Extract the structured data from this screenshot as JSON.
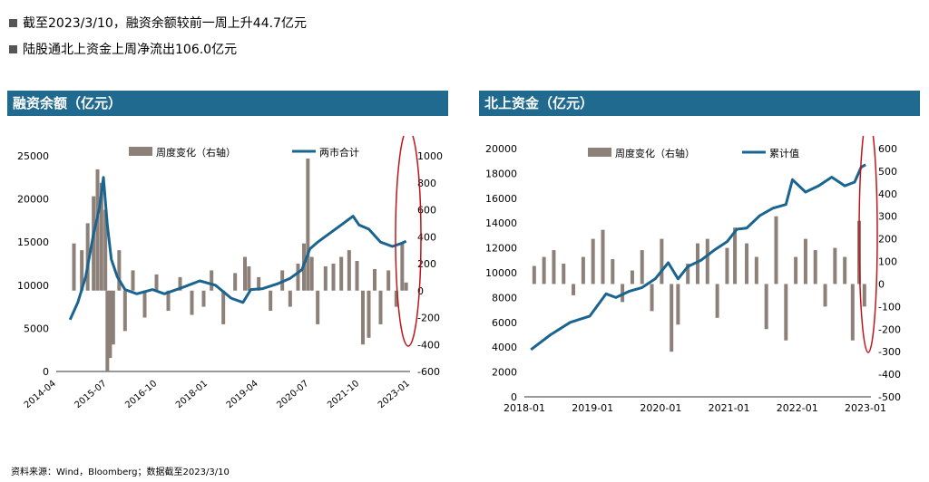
{
  "summary": {
    "line1": "截至2023/3/10，融资余额较前一周上升44.7亿元",
    "line2": "陆股通北上资金上周净流出106.0亿元"
  },
  "footer": "资料来源：Wind，Bloomberg；数据截至2023/3/10",
  "chart_data": [
    {
      "type": "bar+line",
      "title": "融资余额（亿元）",
      "legend": [
        "周度变化（右轴）",
        "两市合计"
      ],
      "left_axis": {
        "ylim": [
          0,
          25000
        ],
        "ticks": [
          0,
          5000,
          10000,
          15000,
          20000,
          25000
        ]
      },
      "right_axis": {
        "ylim": [
          -600,
          1000
        ],
        "ticks": [
          -600,
          -400,
          -200,
          0,
          200,
          400,
          600,
          800,
          1000
        ]
      },
      "x_range": [
        2014.25,
        2023.25
      ],
      "x_ticks": [
        "2014-04",
        "2015-07",
        "2016-10",
        "2018-01",
        "2019-04",
        "2020-07",
        "2021-10",
        "2023-01"
      ],
      "line": {
        "name": "两市合计",
        "x": [
          2014.6,
          2014.8,
          2015.0,
          2015.2,
          2015.35,
          2015.45,
          2015.55,
          2015.65,
          2015.8,
          2016.0,
          2016.3,
          2016.7,
          2017.0,
          2017.5,
          2017.9,
          2018.3,
          2018.7,
          2019.0,
          2019.2,
          2019.5,
          2019.9,
          2020.2,
          2020.5,
          2020.7,
          2020.9,
          2021.2,
          2021.5,
          2021.8,
          2021.95,
          2022.2,
          2022.5,
          2022.8,
          2023.0,
          2023.15
        ],
        "values": [
          6000,
          8000,
          11000,
          16000,
          19000,
          22500,
          17000,
          13000,
          11000,
          9500,
          9000,
          9500,
          9000,
          9800,
          10500,
          10000,
          8500,
          8000,
          9500,
          9600,
          10200,
          10800,
          11800,
          14200,
          15000,
          16000,
          17000,
          18000,
          17000,
          16500,
          15000,
          14500,
          14800,
          15100
        ]
      },
      "bars": {
        "name": "周度变化（右轴）",
        "x": [
          2014.7,
          2014.9,
          2015.05,
          2015.2,
          2015.3,
          2015.4,
          2015.5,
          2015.55,
          2015.62,
          2015.7,
          2015.85,
          2016.0,
          2016.2,
          2016.5,
          2016.8,
          2017.1,
          2017.4,
          2017.7,
          2018.0,
          2018.2,
          2018.5,
          2018.8,
          2019.05,
          2019.15,
          2019.4,
          2019.7,
          2020.0,
          2020.2,
          2020.4,
          2020.55,
          2020.65,
          2020.75,
          2020.9,
          2021.1,
          2021.3,
          2021.5,
          2021.7,
          2021.9,
          2022.05,
          2022.2,
          2022.35,
          2022.5,
          2022.7,
          2022.9,
          2023.05,
          2023.15
        ],
        "values": [
          350,
          300,
          500,
          700,
          900,
          800,
          600,
          -600,
          -500,
          -400,
          300,
          -300,
          150,
          -200,
          120,
          -150,
          100,
          -180,
          -120,
          150,
          -250,
          130,
          250,
          180,
          100,
          -150,
          150,
          -120,
          200,
          350,
          980,
          250,
          -250,
          180,
          200,
          250,
          300,
          220,
          -400,
          -350,
          160,
          -250,
          150,
          -120,
          350,
          60
        ]
      }
    },
    {
      "type": "bar+line",
      "title": "北上资金（亿元）",
      "legend": [
        "周度变化（右轴）",
        "累计值"
      ],
      "left_axis": {
        "ylim": [
          0,
          20000
        ],
        "ticks": [
          0,
          2000,
          4000,
          6000,
          8000,
          10000,
          12000,
          14000,
          16000,
          18000,
          20000
        ]
      },
      "right_axis": {
        "ylim": [
          -500,
          600
        ],
        "ticks": [
          -500,
          -400,
          -300,
          -200,
          -100,
          0,
          100,
          200,
          300,
          400,
          500,
          600
        ]
      },
      "x_range": [
        2017.9,
        2023.2
      ],
      "x_ticks": [
        "2018-01",
        "2019-01",
        "2020-01",
        "2021-01",
        "2022-01",
        "2023-01"
      ],
      "line": {
        "name": "累计值",
        "x": [
          2018.0,
          2018.3,
          2018.6,
          2018.9,
          2019.15,
          2019.3,
          2019.5,
          2019.7,
          2019.9,
          2020.1,
          2020.25,
          2020.4,
          2020.6,
          2020.8,
          2021.0,
          2021.15,
          2021.3,
          2021.5,
          2021.7,
          2021.9,
          2022.0,
          2022.2,
          2022.4,
          2022.6,
          2022.8,
          2022.95,
          2023.05,
          2023.12
        ],
        "values": [
          3800,
          5000,
          6000,
          6500,
          8300,
          8000,
          8500,
          8800,
          9500,
          10800,
          9500,
          10500,
          11000,
          11800,
          12500,
          13500,
          13600,
          14600,
          15200,
          15500,
          17500,
          16500,
          17000,
          17700,
          17000,
          17300,
          18500,
          18700
        ]
      },
      "bars": {
        "name": "周度变化（右轴）",
        "x": [
          2018.05,
          2018.2,
          2018.35,
          2018.5,
          2018.65,
          2018.8,
          2018.95,
          2019.1,
          2019.25,
          2019.4,
          2019.55,
          2019.7,
          2019.85,
          2020.0,
          2020.15,
          2020.25,
          2020.4,
          2020.55,
          2020.7,
          2020.85,
          2021.0,
          2021.12,
          2021.3,
          2021.45,
          2021.6,
          2021.75,
          2021.9,
          2022.05,
          2022.2,
          2022.35,
          2022.5,
          2022.65,
          2022.8,
          2022.92,
          2023.02,
          2023.1
        ],
        "values": [
          80,
          120,
          150,
          90,
          -50,
          120,
          200,
          240,
          110,
          -80,
          60,
          150,
          -120,
          200,
          -300,
          -180,
          90,
          180,
          200,
          -150,
          160,
          250,
          180,
          120,
          -200,
          300,
          -250,
          120,
          200,
          150,
          -100,
          160,
          120,
          -250,
          280,
          -100
        ]
      }
    }
  ]
}
